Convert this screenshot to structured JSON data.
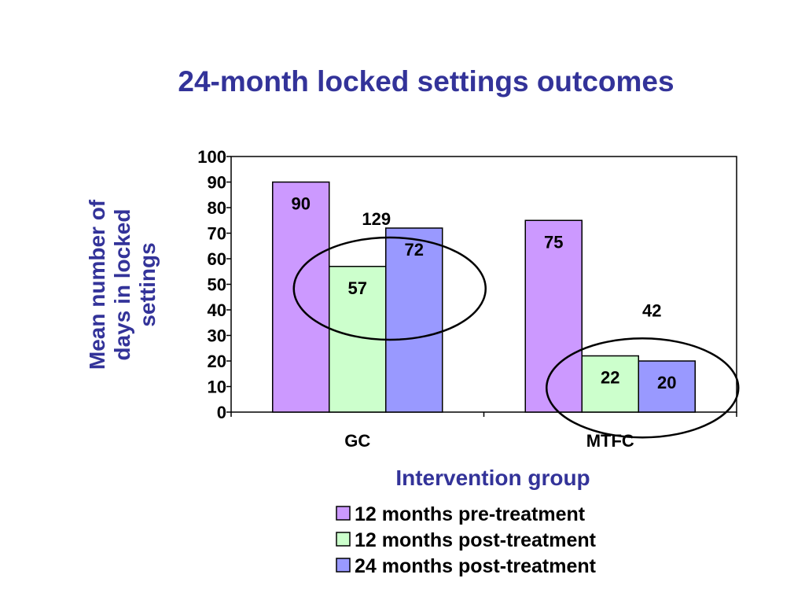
{
  "chart_data": {
    "type": "bar",
    "title": "24-month locked settings outcomes",
    "xlabel": "Intervention group",
    "ylabel": "Mean number of days in locked settings",
    "ylabel_lines": [
      "Mean number of",
      "days in locked",
      "settings"
    ],
    "categories": [
      "GC",
      "MTFC"
    ],
    "series": [
      {
        "name": "12 months pre-treatment",
        "values": [
          90,
          75
        ],
        "color": "#CC99FF"
      },
      {
        "name": "12 months post-treatment",
        "values": [
          57,
          22
        ],
        "color": "#CCFFCC"
      },
      {
        "name": "24 months post-treatment",
        "values": [
          72,
          20
        ],
        "color": "#9999FF"
      }
    ],
    "ylim": [
      0,
      100
    ],
    "yticks": [
      0,
      10,
      20,
      30,
      40,
      50,
      60,
      70,
      80,
      90,
      100
    ],
    "grid": false,
    "legend_position": "bottom-right",
    "annotations": [
      {
        "text": "129",
        "category": "GC",
        "kind": "circled-sum"
      },
      {
        "text": "42",
        "category": "MTFC",
        "kind": "circled-sum"
      }
    ]
  }
}
